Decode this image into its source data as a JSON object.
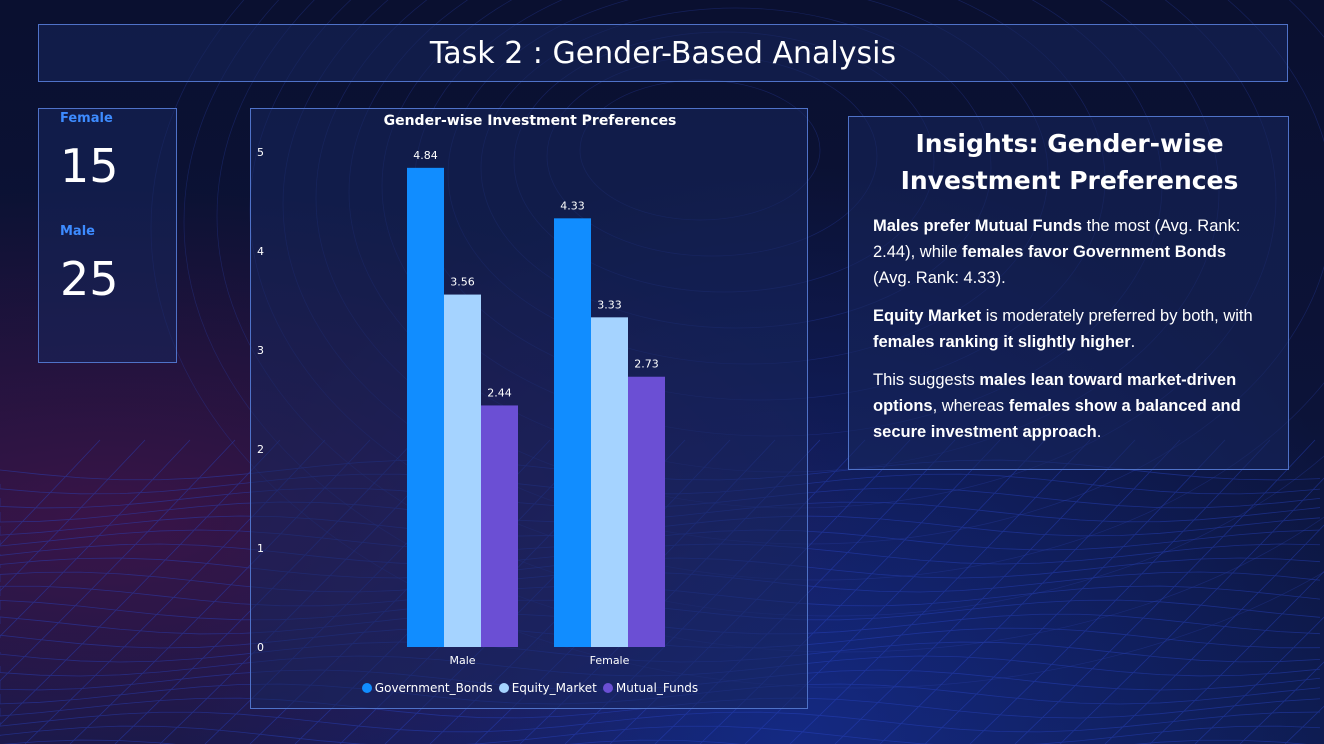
{
  "header": {
    "title": "Task 2 : Gender-Based Analysis"
  },
  "kpis": [
    {
      "label": "Female",
      "value": "15"
    },
    {
      "label": "Male",
      "value": "25"
    }
  ],
  "chart_data": {
    "type": "bar",
    "title": "Gender-wise Investment Preferences",
    "categories": [
      "Male",
      "Female"
    ],
    "series": [
      {
        "name": "Government_Bonds",
        "values": [
          4.84,
          4.33
        ],
        "color": "#118dff"
      },
      {
        "name": "Equity_Market",
        "values": [
          3.56,
          3.33
        ],
        "color": "#a5d3ff"
      },
      {
        "name": "Mutual_Funds",
        "values": [
          2.44,
          2.73
        ],
        "color": "#6b4fd4"
      }
    ],
    "ylim": [
      0,
      5
    ],
    "yticks": [
      0,
      1,
      2,
      3,
      4,
      5
    ],
    "data_labels": true,
    "legend": "bottom",
    "grid": false
  },
  "insights": {
    "title": "Insights: Gender-wise Investment Preferences",
    "paragraphs": [
      [
        {
          "text": "Males prefer Mutual Funds",
          "bold": true
        },
        {
          "text": " the most (Avg. Rank: 2.44), while ",
          "bold": false
        },
        {
          "text": "females favor Government Bonds",
          "bold": true
        },
        {
          "text": " (Avg. Rank: 4.33).",
          "bold": false
        }
      ],
      [
        {
          "text": "Equity Market",
          "bold": true
        },
        {
          "text": " is moderately preferred by both, with ",
          "bold": false
        },
        {
          "text": "females ranking it slightly higher",
          "bold": true
        },
        {
          "text": ".",
          "bold": false
        }
      ],
      [
        {
          "text": "This suggests ",
          "bold": false
        },
        {
          "text": "males lean toward market-driven options",
          "bold": true
        },
        {
          "text": ", whereas ",
          "bold": false
        },
        {
          "text": "females show a balanced and secure investment approach",
          "bold": true
        },
        {
          "text": ".",
          "bold": false
        }
      ]
    ]
  },
  "colors": {
    "panel_border": "#4f72c8",
    "kpi_label": "#3d8bff"
  }
}
